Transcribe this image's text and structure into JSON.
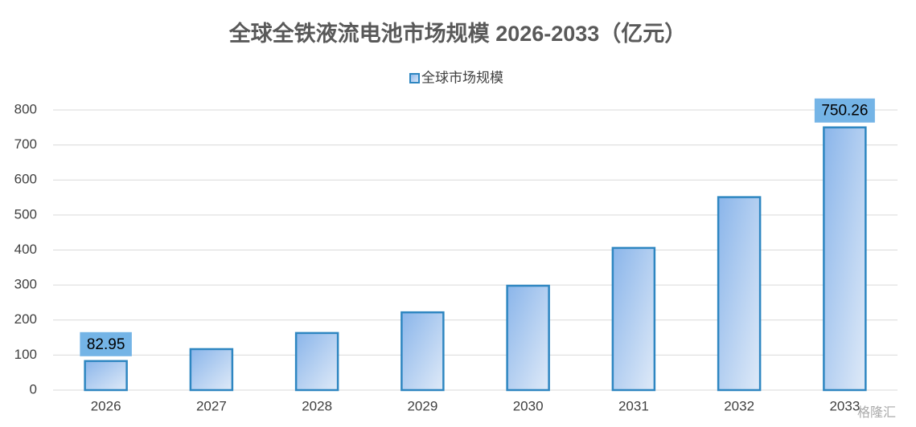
{
  "chart_data": {
    "type": "bar",
    "title": "全球全铁液流电池市场规模 2026-2033（亿元）",
    "categories": [
      "2026",
      "2027",
      "2028",
      "2029",
      "2030",
      "2031",
      "2032",
      "2033"
    ],
    "series": [
      {
        "name": "全球市场规模",
        "color": "#2e86c1",
        "values": [
          82.95,
          117,
          163,
          222,
          298,
          406,
          551,
          750.26
        ],
        "value_labels": [
          "82.95",
          null,
          null,
          null,
          null,
          null,
          null,
          "750.26"
        ]
      }
    ],
    "ylim": [
      0,
      800
    ],
    "yticks": [
      0,
      100,
      200,
      300,
      400,
      500,
      600,
      700,
      800
    ],
    "grid": true,
    "legend": "top",
    "watermark": "格隆汇"
  }
}
